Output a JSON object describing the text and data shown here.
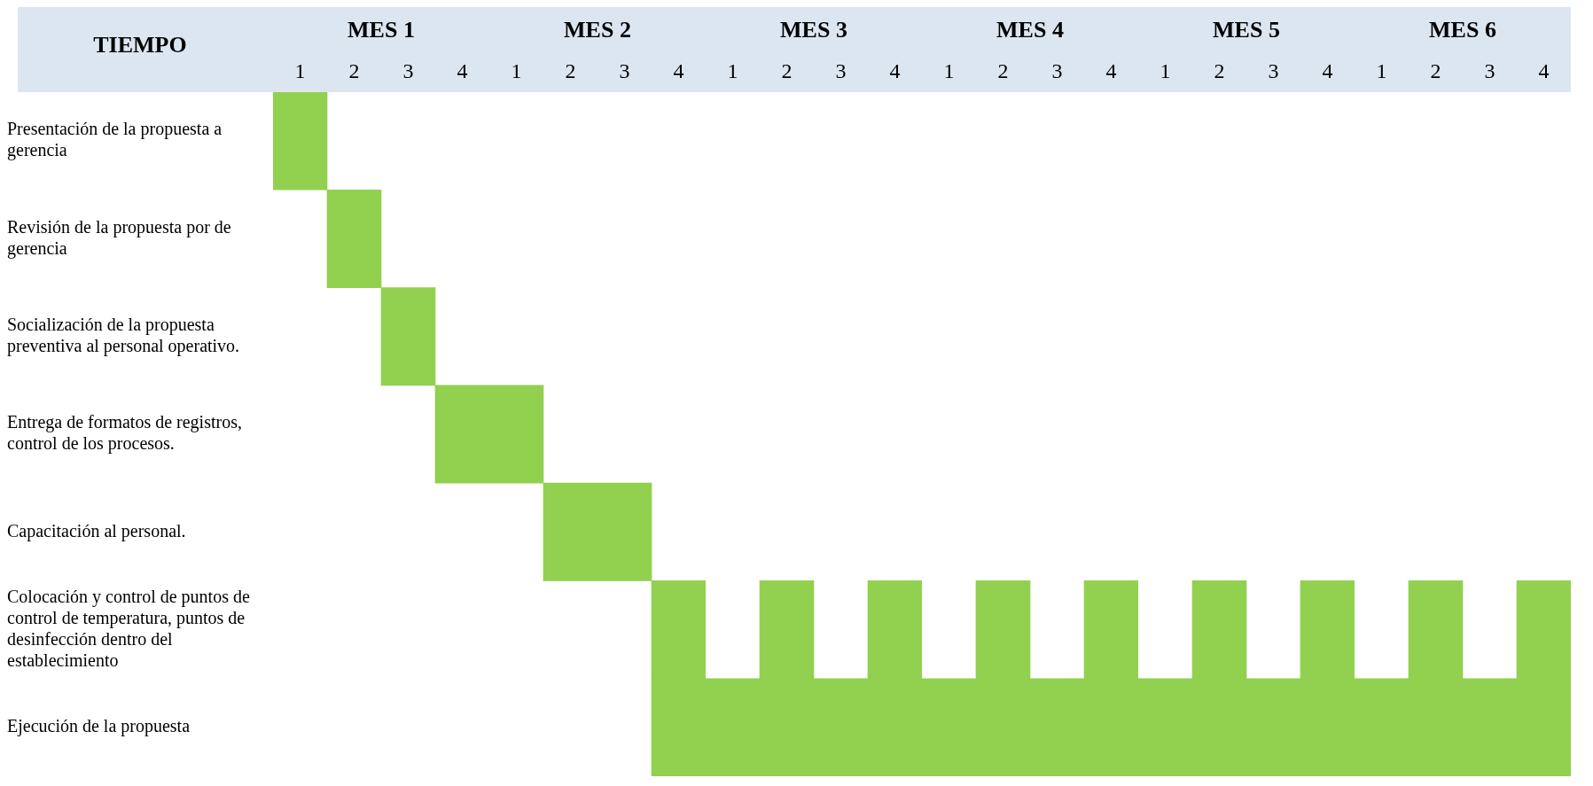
{
  "chart_data": [
    {
      "type": "bar",
      "orientation": "horizontal",
      "title": "MES 1",
      "ylabel": "TIEMPO",
      "categories": [
        "Presentación de la propuesta a gerencia",
        "Revisión de la propuesta por de gerencia",
        "Socialización de la propuesta preventiva al personal operativo.",
        "Entrega de formatos de registros, control de los procesos.",
        "Capacitación al personal.",
        "Colocación y control de puntos de control de temperatura, puntos de desinfección dentro del establecimiento",
        "Ejecución de la propuesta"
      ],
      "series": [
        {
          "color": "#92d050",
          "values": [
            1,
            1,
            1,
            1,
            null,
            null,
            null
          ],
          "base": [
            0.5,
            1.5,
            2.5,
            3.5,
            null,
            null,
            null
          ]
        }
      ],
      "xlim": [
        0.5,
        4.5
      ],
      "xticks": [
        1,
        2,
        3,
        4
      ],
      "grid": false,
      "legend": false
    },
    {
      "type": "bar",
      "orientation": "horizontal",
      "title": "MES 2",
      "tick_labels": "x",
      "categories": [
        null,
        null,
        null,
        null,
        null,
        null,
        null
      ],
      "series": [
        {
          "color": "#92d050",
          "values": [
            null,
            null,
            null,
            1,
            2,
            1,
            1
          ],
          "base": [
            null,
            null,
            null,
            0.5,
            1.5,
            3.5,
            3.5
          ]
        }
      ],
      "xlim": [
        0.5,
        4.5
      ],
      "xticks": [
        1,
        2,
        3,
        4
      ],
      "grid": false,
      "legend": false
    },
    {
      "type": "bar",
      "orientation": "horizontal",
      "title": "MES 3",
      "tick_labels": "x",
      "categories": [
        null,
        null,
        null,
        null,
        null,
        null,
        null
      ],
      "series": [
        {
          "color": "#92d050",
          "values": [
            null,
            null,
            null,
            null,
            null,
            1,
            4
          ],
          "base": [
            null,
            null,
            null,
            null,
            null,
            1.5,
            0.5
          ]
        },
        {
          "color": "#92d050",
          "values": [
            null,
            null,
            null,
            null,
            null,
            1,
            null
          ],
          "base": [
            null,
            null,
            null,
            null,
            null,
            3.5,
            null
          ]
        }
      ],
      "xlim": [
        0.5,
        4.5
      ],
      "xticks": [
        1,
        2,
        3,
        4
      ],
      "grid": false,
      "legend": false
    },
    {
      "type": "bar",
      "orientation": "horizontal",
      "title": "MES 4",
      "tick_labels": "x",
      "categories": [
        null,
        null,
        null,
        null,
        null,
        null,
        null
      ],
      "series": [
        {
          "color": "#92d050",
          "values": [
            null,
            null,
            null,
            null,
            null,
            1,
            4
          ],
          "base": [
            null,
            null,
            null,
            null,
            null,
            1.5,
            0.5
          ]
        },
        {
          "color": "#92d050",
          "values": [
            null,
            null,
            null,
            null,
            null,
            1,
            null
          ],
          "base": [
            null,
            null,
            null,
            null,
            null,
            3.5,
            null
          ]
        }
      ],
      "xlim": [
        0.5,
        4.5
      ],
      "xticks": [
        1,
        2,
        3,
        4
      ],
      "grid": false,
      "legend": false
    },
    {
      "type": "bar",
      "orientation": "horizontal",
      "title": "MES 5",
      "tick_labels": "x",
      "categories": [
        null,
        null,
        null,
        null,
        null,
        null,
        null
      ],
      "series": [
        {
          "color": "#92d050",
          "values": [
            null,
            null,
            null,
            null,
            null,
            1,
            4
          ],
          "base": [
            null,
            null,
            null,
            null,
            null,
            1.5,
            0.5
          ]
        },
        {
          "color": "#92d050",
          "values": [
            null,
            null,
            null,
            null,
            null,
            1,
            null
          ],
          "base": [
            null,
            null,
            null,
            null,
            null,
            3.5,
            null
          ]
        }
      ],
      "xlim": [
        0.5,
        4.5
      ],
      "xticks": [
        1,
        2,
        3,
        4
      ],
      "grid": false,
      "legend": false
    },
    {
      "type": "bar",
      "orientation": "horizontal",
      "title": "MES 6",
      "tick_labels": "x",
      "categories": [
        null,
        null,
        null,
        null,
        null,
        null,
        null
      ],
      "series": [
        {
          "color": "#92d050",
          "values": [
            null,
            null,
            null,
            null,
            null,
            1,
            4
          ],
          "base": [
            null,
            null,
            null,
            null,
            null,
            1.5,
            0.5
          ]
        },
        {
          "color": "#92d050",
          "values": [
            null,
            null,
            null,
            null,
            null,
            1,
            null
          ],
          "base": [
            null,
            null,
            null,
            null,
            null,
            3.5,
            null
          ]
        }
      ],
      "xlim": [
        0.5,
        4.5
      ],
      "xticks": [
        1,
        2,
        3,
        4
      ],
      "grid": false,
      "legend": false
    }
  ]
}
